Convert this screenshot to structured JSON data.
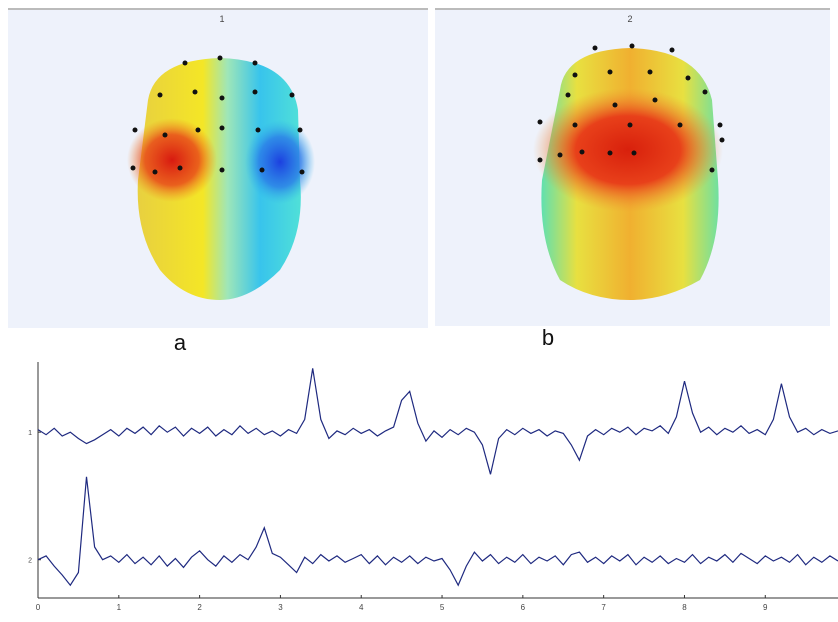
{
  "panels": [
    {
      "title": "1",
      "caption": "a"
    },
    {
      "title": "2",
      "caption": "b"
    }
  ],
  "chart_data": {
    "type": "line",
    "x": [
      0,
      0.1,
      0.2,
      0.3,
      0.4,
      0.5,
      0.6,
      0.7,
      0.8,
      0.9,
      1,
      1.1,
      1.2,
      1.3,
      1.4,
      1.5,
      1.6,
      1.7,
      1.8,
      1.9,
      2,
      2.1,
      2.2,
      2.3,
      2.4,
      2.5,
      2.6,
      2.7,
      2.8,
      2.9,
      3,
      3.1,
      3.2,
      3.3,
      3.4,
      3.5,
      3.6,
      3.7,
      3.8,
      3.9,
      4,
      4.1,
      4.2,
      4.3,
      4.4,
      4.5,
      4.6,
      4.7,
      4.8,
      4.9,
      5,
      5.1,
      5.2,
      5.3,
      5.4,
      5.5,
      5.6,
      5.7,
      5.8,
      5.9,
      6,
      6.1,
      6.2,
      6.3,
      6.4,
      6.5,
      6.6,
      6.7,
      6.8,
      6.9,
      7,
      7.1,
      7.2,
      7.3,
      7.4,
      7.5,
      7.6,
      7.7,
      7.8,
      7.9,
      8,
      8.1,
      8.2,
      8.3,
      8.4,
      8.5,
      8.6,
      8.7,
      8.8,
      8.9,
      9,
      9.1,
      9.2,
      9.3,
      9.4,
      9.5,
      9.6,
      9.7,
      9.8,
      9.9
    ],
    "series": [
      {
        "color": "#1f2a80",
        "values": [
          0.98,
          1.02,
          0.97,
          1.03,
          1.0,
          1.05,
          1.09,
          1.06,
          1.02,
          0.98,
          1.03,
          0.97,
          1.01,
          0.96,
          1.02,
          0.95,
          1.0,
          0.96,
          1.03,
          0.97,
          1.01,
          0.96,
          1.03,
          0.98,
          1.02,
          0.95,
          1.01,
          0.97,
          1.02,
          0.99,
          1.03,
          0.98,
          1.01,
          0.9,
          0.5,
          0.9,
          1.05,
          0.99,
          1.02,
          0.97,
          1.01,
          0.98,
          1.03,
          0.99,
          0.96,
          0.75,
          0.68,
          0.93,
          1.07,
          0.99,
          1.04,
          0.98,
          1.02,
          0.97,
          1.0,
          1.1,
          1.33,
          1.05,
          0.98,
          1.02,
          0.97,
          1.01,
          0.98,
          1.03,
          0.99,
          1.01,
          1.1,
          1.22,
          1.03,
          0.98,
          1.02,
          0.97,
          1.0,
          0.96,
          1.02,
          0.97,
          0.99,
          0.95,
          1.01,
          0.88,
          0.6,
          0.85,
          1.0,
          0.96,
          1.02,
          0.97,
          1.0,
          0.95,
          1.01,
          0.98,
          1.02,
          0.9,
          0.62,
          0.88,
          1.0,
          0.97,
          1.02,
          0.98,
          1.01,
          0.99
        ]
      },
      {
        "color": "#1f2a80",
        "values": [
          2.0,
          1.97,
          2.05,
          2.12,
          2.2,
          2.1,
          1.35,
          1.9,
          2.0,
          1.97,
          2.02,
          1.96,
          2.03,
          1.98,
          2.04,
          1.97,
          2.05,
          1.99,
          2.06,
          1.98,
          1.93,
          2.0,
          2.05,
          1.97,
          2.02,
          1.96,
          2.0,
          1.9,
          1.75,
          1.95,
          1.98,
          2.04,
          2.1,
          1.98,
          2.03,
          1.96,
          2.01,
          1.97,
          2.02,
          1.99,
          1.96,
          2.03,
          1.97,
          2.04,
          1.98,
          2.02,
          1.97,
          2.03,
          1.98,
          2.01,
          1.99,
          2.08,
          2.2,
          2.05,
          1.94,
          2.01,
          1.96,
          2.03,
          1.98,
          2.02,
          1.96,
          2.03,
          1.98,
          2.01,
          1.97,
          2.04,
          1.96,
          1.94,
          2.02,
          1.98,
          2.03,
          1.97,
          2.01,
          1.96,
          2.04,
          1.98,
          2.02,
          1.97,
          2.03,
          1.99,
          2.02,
          1.96,
          2.03,
          1.98,
          2.01,
          1.96,
          2.02,
          1.95,
          1.99,
          2.03,
          1.97,
          2.01,
          1.98,
          2.02,
          1.96,
          2.04,
          1.98,
          2.02,
          1.97,
          2.01
        ]
      }
    ],
    "xlim": [
      0,
      9.9
    ],
    "xticks": [
      0,
      1,
      2,
      3,
      4,
      5,
      6,
      7,
      8,
      9
    ],
    "ylim": [
      0.45,
      2.3
    ],
    "yticks": [
      1,
      2
    ],
    "y_inverted": true
  }
}
